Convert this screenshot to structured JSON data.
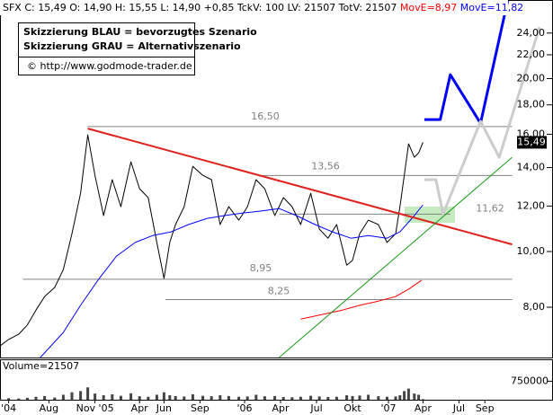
{
  "chart_data": {
    "type": "line",
    "info_bar": [
      {
        "text": "SFX C: 15,49 O: 14,90 H: 15,55 L: 14,90 +0,85 TckV: 100 LV: 21507 TotV: 21507",
        "color": "#000000"
      },
      {
        "text": "MovE=8,97",
        "color": "#ff0000"
      },
      {
        "text": "MovE=11,82",
        "color": "#0000ff"
      }
    ],
    "notes": [
      "Skizzierung BLAU = bevorzugtes Szenario",
      "Skizzierung GRAU = Alternativszenario",
      "© http://www.godmode-trader.de"
    ],
    "log_scale": true,
    "xlim": [
      2004.3,
      2008.125
    ],
    "ylim": [
      6.54,
      27.4
    ],
    "yticks": [
      {
        "value": 8,
        "label": "8,00"
      },
      {
        "value": 10,
        "label": "10,00"
      },
      {
        "value": 12,
        "label": "12,00"
      },
      {
        "value": 14,
        "label": "14,00"
      },
      {
        "value": 16,
        "label": "16,00"
      },
      {
        "value": 18,
        "label": "18,00"
      },
      {
        "value": 20,
        "label": "20,00"
      },
      {
        "value": 22,
        "label": "22,00"
      },
      {
        "value": 24,
        "label": "24,00"
      }
    ],
    "xticks": [
      {
        "value": 2004.36,
        "label": "'04"
      },
      {
        "value": 2004.64,
        "label": "Aug"
      },
      {
        "value": 2004.96,
        "label": "Nov '05"
      },
      {
        "value": 2005.27,
        "label": "Apr"
      },
      {
        "value": 2005.44,
        "label": "Jun"
      },
      {
        "value": 2005.69,
        "label": "Sep"
      },
      {
        "value": 2006.0,
        "label": "'06"
      },
      {
        "value": 2006.25,
        "label": "Apr"
      },
      {
        "value": 2006.5,
        "label": "Jul"
      },
      {
        "value": 2006.75,
        "label": "Okt"
      },
      {
        "value": 2007.0,
        "label": "'07"
      },
      {
        "value": 2007.24,
        "label": "Apr"
      },
      {
        "value": 2007.49,
        "label": "Jul"
      },
      {
        "value": 2007.67,
        "label": "Sep"
      }
    ],
    "series": [
      {
        "color": "#000000",
        "width": 1,
        "x": [
          2004.3,
          2004.36,
          2004.43,
          2004.49,
          2004.55,
          2004.61,
          2004.68,
          2004.74,
          2004.8,
          2004.86,
          2004.91,
          2004.96,
          2005.02,
          2005.08,
          2005.14,
          2005.21,
          2005.27,
          2005.33,
          2005.39,
          2005.44,
          2005.48,
          2005.52,
          2005.58,
          2005.64,
          2005.71,
          2005.77,
          2005.83,
          2005.89,
          2005.96,
          2006.02,
          2006.08,
          2006.14,
          2006.21,
          2006.27,
          2006.33,
          2006.39,
          2006.46,
          2006.52,
          2006.58,
          2006.64,
          2006.71,
          2006.75,
          2006.8,
          2006.86,
          2006.93,
          2006.99,
          2007.05,
          2007.08,
          2007.11,
          2007.14,
          2007.18,
          2007.21,
          2007.24
        ],
        "values": [
          6.85,
          7.03,
          7.18,
          7.45,
          7.91,
          8.35,
          8.66,
          9.3,
          10.74,
          12.63,
          15.96,
          13.57,
          11.55,
          13.34,
          11.97,
          14.33,
          12.86,
          12.41,
          10.37,
          8.98,
          10.37,
          11.14,
          11.97,
          14.07,
          13.57,
          13.34,
          11.14,
          11.97,
          11.34,
          11.97,
          13.34,
          12.86,
          11.55,
          12.41,
          11.97,
          11.14,
          12.63,
          10.94,
          10.55,
          11.14,
          9.47,
          9.65,
          10.74,
          11.34,
          11.14,
          10.37,
          10.74,
          11.97,
          13.57,
          15.4,
          14.59,
          14.85,
          15.49
        ]
      },
      {
        "color": "#0000ff",
        "width": 1,
        "x": [
          2004.58,
          2004.74,
          2004.86,
          2004.99,
          2005.11,
          2005.24,
          2005.36,
          2005.49,
          2005.61,
          2005.74,
          2005.86,
          2005.99,
          2006.11,
          2006.24,
          2006.36,
          2006.49,
          2006.61,
          2006.74,
          2006.86,
          2006.99,
          2007.08,
          2007.18,
          2007.24
        ],
        "values": [
          6.54,
          7.23,
          8.06,
          8.98,
          9.82,
          10.37,
          10.66,
          10.82,
          11.14,
          11.42,
          11.55,
          11.67,
          11.76,
          11.88,
          11.55,
          11.14,
          10.82,
          10.55,
          10.66,
          10.55,
          10.82,
          11.55,
          12.06
        ]
      },
      {
        "color": "#ff0000",
        "width": 1,
        "x": [
          2006.39,
          2006.55,
          2006.68,
          2006.8,
          2006.93,
          2007.05,
          2007.14,
          2007.23
        ],
        "values": [
          7.63,
          7.78,
          7.91,
          8.06,
          8.2,
          8.35,
          8.6,
          8.91
        ]
      },
      {
        "color": "#e0201a",
        "width": 2,
        "x": [
          2004.91,
          2007.86
        ],
        "values": [
          16.37,
          10.29
        ]
      },
      {
        "color": "#1a9a1a",
        "width": 1,
        "x": [
          2006.24,
          2007.86
        ],
        "values": [
          6.54,
          14.59
        ]
      },
      {
        "color": "#0000ff",
        "width": 3,
        "x": [
          2007.25,
          2007.36,
          2007.43,
          2007.64,
          2007.83
        ],
        "values": [
          16.97,
          16.97,
          20.31,
          16.72,
          27.4
        ]
      },
      {
        "color": "#cccccc",
        "width": 3,
        "x": [
          2007.25,
          2007.33,
          2007.38,
          2007.64,
          2007.77,
          2008.05
        ],
        "values": [
          13.34,
          13.34,
          11.63,
          16.85,
          14.59,
          24.57
        ]
      }
    ],
    "levels": [
      {
        "value": 16.5,
        "label": "16,50",
        "x": [
          2004.91,
          2007.86
        ]
      },
      {
        "value": 13.56,
        "label": "13,56",
        "x": [
          2006.11,
          2007.86
        ]
      },
      {
        "value": 11.62,
        "label": "11,62",
        "x": [
          2006.24,
          2007.43
        ]
      },
      {
        "value": 8.95,
        "label": "8,95",
        "x": [
          2004.46,
          2007.86
        ]
      },
      {
        "value": 8.25,
        "label": "8,25",
        "x": [
          2005.45,
          2007.86
        ]
      }
    ],
    "last_price": {
      "value": 15.49,
      "label": "15,49"
    },
    "volume": {
      "label": "Volume=21507",
      "ylim": [
        0,
        1600000
      ],
      "yticks": [
        750000
      ],
      "values": [
        40000,
        60000,
        50000,
        80000,
        120000,
        150000,
        90000,
        200000,
        300000,
        350000,
        500000,
        250000,
        180000,
        220000,
        160000,
        260000,
        140000,
        120000,
        200000,
        300000,
        180000,
        150000,
        130000,
        220000,
        160000,
        140000,
        180000,
        150000,
        120000,
        130000,
        200000,
        140000,
        150000,
        110000,
        100000,
        120000,
        160000,
        130000,
        110000,
        120000,
        180000,
        150000,
        170000,
        200000,
        140000,
        120000,
        130000,
        180000,
        350000,
        450000,
        250000,
        200000,
        21507
      ]
    }
  }
}
